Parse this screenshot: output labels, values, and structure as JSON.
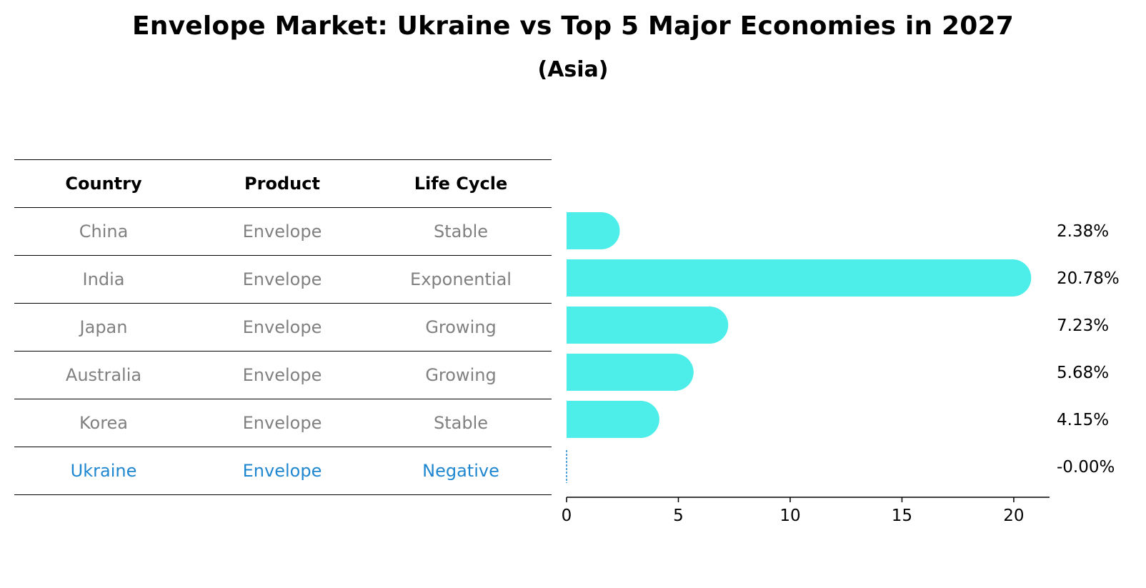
{
  "title": "Envelope Market: Ukraine vs Top 5 Major Economies in 2027",
  "subtitle": "(Asia)",
  "table": {
    "headers": [
      "Country",
      "Product",
      "Life Cycle"
    ],
    "rows": [
      [
        "China",
        "Envelope",
        "Stable"
      ],
      [
        "India",
        "Envelope",
        "Exponential"
      ],
      [
        "Japan",
        "Envelope",
        "Growing"
      ],
      [
        "Australia",
        "Envelope",
        "Growing"
      ],
      [
        "Korea",
        "Envelope",
        "Stable"
      ],
      [
        "Ukraine",
        "Envelope",
        "Negative"
      ]
    ],
    "highlight_row": 5
  },
  "colors": {
    "bar": "#4deeea",
    "highlight": "#1f87d0",
    "muted_text": "#808080",
    "axis": "#000000"
  },
  "chart_data": {
    "type": "bar",
    "orientation": "horizontal",
    "categories": [
      "China",
      "India",
      "Japan",
      "Australia",
      "Korea",
      "Ukraine"
    ],
    "values": [
      2.38,
      20.78,
      7.23,
      5.68,
      4.15,
      -0.0
    ],
    "value_labels": [
      "2.38%",
      "20.78%",
      "7.23%",
      "5.68%",
      "4.15%",
      "-0.00%"
    ],
    "xlim": [
      0,
      21.6
    ],
    "xticks": [
      0,
      5,
      10,
      15,
      20
    ],
    "xlabel": "",
    "ylabel": "",
    "grid": false,
    "bar_style": "rounded-end"
  }
}
